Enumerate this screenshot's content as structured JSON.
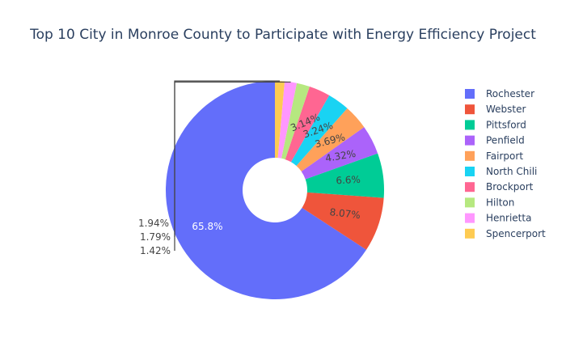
{
  "chart_data": {
    "type": "pie",
    "hole": true,
    "title": "Top 10 City in Monroe County to Participate with Energy Efficiency Project",
    "legend_position": "right",
    "slices": [
      {
        "label": "Rochester",
        "value": 65.8,
        "text": "65.8%",
        "color": "#636efa",
        "text_color": "#ffffff"
      },
      {
        "label": "Webster",
        "value": 8.07,
        "text": "8.07%",
        "color": "#ef553b",
        "text_color": "#444444"
      },
      {
        "label": "Pittsford",
        "value": 6.6,
        "text": "6.6%",
        "color": "#00cc96",
        "text_color": "#444444"
      },
      {
        "label": "Penfield",
        "value": 4.32,
        "text": "4.32%",
        "color": "#ab63fa",
        "text_color": "#444444"
      },
      {
        "label": "Fairport",
        "value": 3.69,
        "text": "3.69%",
        "color": "#ffa15a",
        "text_color": "#444444"
      },
      {
        "label": "North Chili",
        "value": 3.24,
        "text": "3.24%",
        "color": "#19d3f3",
        "text_color": "#444444"
      },
      {
        "label": "Brockport",
        "value": 3.14,
        "text": "3.14%",
        "color": "#ff6692",
        "text_color": "#444444"
      },
      {
        "label": "Hilton",
        "value": 1.94,
        "text": "1.94%",
        "color": "#b6e880",
        "text_color": "#444444"
      },
      {
        "label": "Henrietta",
        "value": 1.79,
        "text": "1.79%",
        "color": "#ff97ff",
        "text_color": "#444444"
      },
      {
        "label": "Spencerport",
        "value": 1.42,
        "text": "1.42%",
        "color": "#fecb52",
        "text_color": "#444444"
      }
    ]
  }
}
